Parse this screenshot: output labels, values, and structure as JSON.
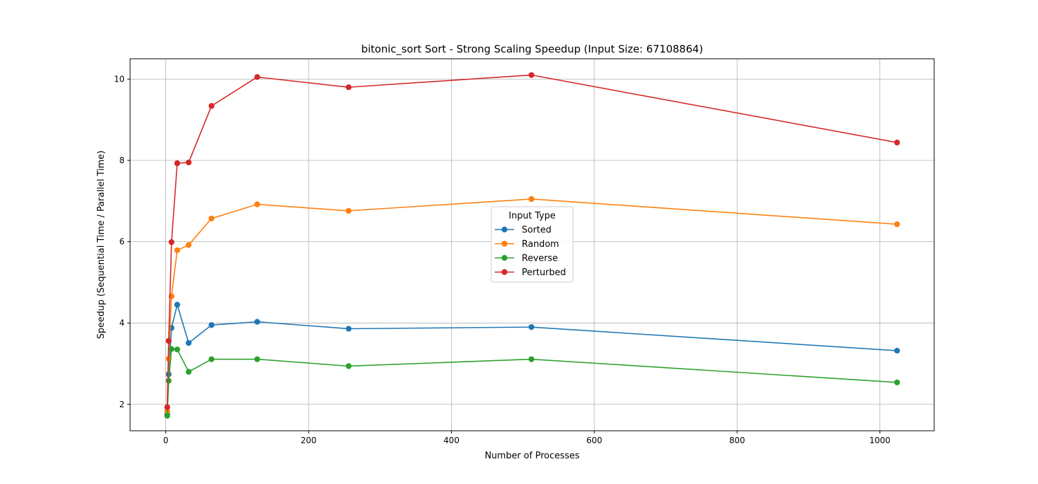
{
  "chart_data": {
    "type": "line",
    "title": "bitonic_sort Sort - Strong Scaling Speedup (Input Size: 67108864)",
    "xlabel": "Number of Processes",
    "ylabel": "Speedup (Sequential Time / Parallel Time)",
    "xlim": [
      -50,
      1076
    ],
    "ylim": [
      1.35,
      10.5
    ],
    "xticks": [
      0,
      200,
      400,
      600,
      800,
      1000
    ],
    "yticks": [
      2,
      4,
      6,
      8,
      10
    ],
    "grid": true,
    "legend": {
      "title": "Input Type",
      "placement": "center"
    },
    "x": [
      2,
      4,
      8,
      16,
      32,
      64,
      128,
      256,
      512,
      1024
    ],
    "series": [
      {
        "name": "Sorted",
        "color": "#1f77b4",
        "values": [
          1.75,
          2.74,
          3.88,
          4.45,
          3.51,
          3.95,
          4.03,
          3.86,
          3.9,
          3.32
        ]
      },
      {
        "name": "Random",
        "color": "#ff7f0e",
        "values": [
          1.83,
          3.12,
          4.66,
          5.79,
          5.92,
          6.57,
          6.92,
          6.76,
          7.05,
          6.43
        ]
      },
      {
        "name": "Reverse",
        "color": "#2ca02c",
        "values": [
          1.72,
          2.58,
          3.36,
          3.35,
          2.8,
          3.11,
          3.11,
          2.94,
          3.11,
          2.54
        ]
      },
      {
        "name": "Perturbed",
        "color": "#d62728",
        "values": [
          1.93,
          3.56,
          5.99,
          7.93,
          7.95,
          9.34,
          10.05,
          9.8,
          10.1,
          8.44
        ]
      }
    ]
  }
}
